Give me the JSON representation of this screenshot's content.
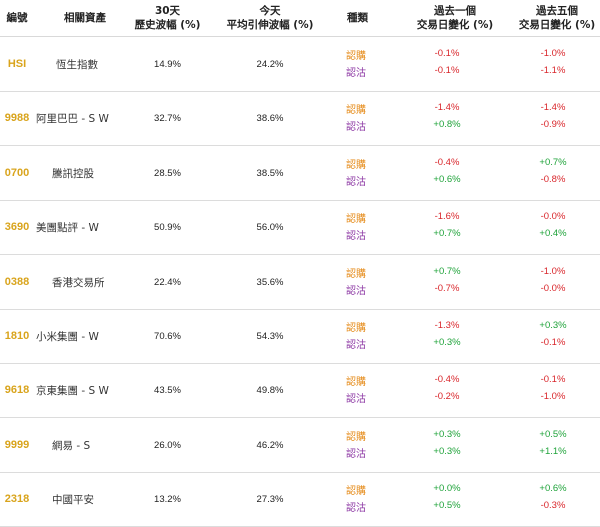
{
  "header": {
    "code": "編號",
    "asset": "相關資產",
    "hv_line1": "30天",
    "hv_line2": "歷史波幅 (%)",
    "iv_line1": "今天",
    "iv_line2": "平均引伸波幅 (%)",
    "type": "種類",
    "chg1_line1": "過去一個",
    "chg1_line2": "交易日變化 (%)",
    "chg5_line1": "過去五個",
    "chg5_line2": "交易日變化 (%)"
  },
  "rows": [
    {
      "code": "HSI",
      "asset": "恆生指數",
      "hv": "14.9%",
      "iv": "24.2%",
      "call": "認購",
      "put": "認沽",
      "c1": "-0.1%",
      "p1": "-0.1%",
      "c5": "-1.0%",
      "p5": "-1.1%"
    },
    {
      "code": "9988",
      "asset": "阿里巴巴 - S W",
      "hv": "32.7%",
      "iv": "38.6%",
      "call": "認購",
      "put": "認沽",
      "c1": "-1.4%",
      "p1": "+0.8%",
      "c5": "-1.4%",
      "p5": "-0.9%"
    },
    {
      "code": "0700",
      "asset": "騰訊控股",
      "hv": "28.5%",
      "iv": "38.5%",
      "call": "認購",
      "put": "認沽",
      "c1": "-0.4%",
      "p1": "+0.6%",
      "c5": "+0.7%",
      "p5": "-0.8%"
    },
    {
      "code": "3690",
      "asset": "美團點評 - W",
      "hv": "50.9%",
      "iv": "56.0%",
      "call": "認購",
      "put": "認沽",
      "c1": "-1.6%",
      "p1": "+0.7%",
      "c5": "-0.0%",
      "p5": "+0.4%"
    },
    {
      "code": "0388",
      "asset": "香港交易所",
      "hv": "22.4%",
      "iv": "35.6%",
      "call": "認購",
      "put": "認沽",
      "c1": "+0.7%",
      "p1": "-0.7%",
      "c5": "-1.0%",
      "p5": "-0.0%"
    },
    {
      "code": "1810",
      "asset": "小米集團 - W",
      "hv": "70.6%",
      "iv": "54.3%",
      "call": "認購",
      "put": "認沽",
      "c1": "-1.3%",
      "p1": "+0.3%",
      "c5": "+0.3%",
      "p5": "-0.1%"
    },
    {
      "code": "9618",
      "asset": "京東集團 - S W",
      "hv": "43.5%",
      "iv": "49.8%",
      "call": "認購",
      "put": "認沽",
      "c1": "-0.4%",
      "p1": "-0.2%",
      "c5": "-0.1%",
      "p5": "-1.0%"
    },
    {
      "code": "9999",
      "asset": "網易 - S",
      "hv": "26.0%",
      "iv": "46.2%",
      "call": "認購",
      "put": "認沽",
      "c1": "+0.3%",
      "p1": "+0.3%",
      "c5": "+0.5%",
      "p5": "+1.1%"
    },
    {
      "code": "2318",
      "asset": "中國平安",
      "hv": "13.2%",
      "iv": "27.3%",
      "call": "認購",
      "put": "認沽",
      "c1": "+0.0%",
      "p1": "+0.5%",
      "c5": "+0.6%",
      "p5": "-0.3%"
    }
  ],
  "colors": {
    "code": "#d9a41c",
    "call": "#e58a17",
    "put": "#8e3aa5",
    "negative": "#d9262b",
    "positive": "#1fa33a"
  }
}
